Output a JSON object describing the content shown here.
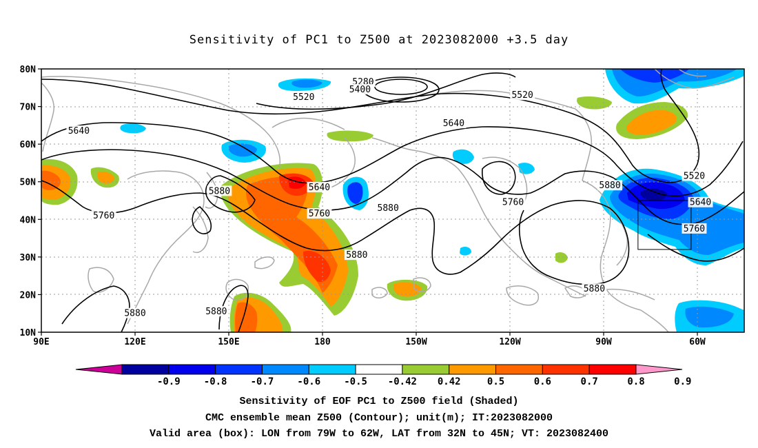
{
  "title": "Sensitivity of PC1 to Z500 at 2023082000 +3.5 day",
  "lat_labels": [
    "80N",
    "70N",
    "60N",
    "50N",
    "40N",
    "30N",
    "20N",
    "10N"
  ],
  "lon_labels": [
    "90E",
    "120E",
    "150E",
    "180",
    "150W",
    "120W",
    "90W",
    "60W"
  ],
  "contour_labels": [
    {
      "text": "5280",
      "lon": 193,
      "lat": 76.5
    },
    {
      "text": "5400",
      "lon": 192,
      "lat": 74.5
    },
    {
      "text": "5520",
      "lon": 174,
      "lat": 72.5
    },
    {
      "text": "5520",
      "lon": 244,
      "lat": 73
    },
    {
      "text": "5520",
      "lon": 299,
      "lat": 51.5
    },
    {
      "text": "5640",
      "lon": 102,
      "lat": 63.5
    },
    {
      "text": "5640",
      "lon": 222,
      "lat": 65.5
    },
    {
      "text": "5640",
      "lon": 179,
      "lat": 48.5
    },
    {
      "text": "5640",
      "lon": 301,
      "lat": 44.5
    },
    {
      "text": "5760",
      "lon": 110,
      "lat": 41
    },
    {
      "text": "5760",
      "lon": 179,
      "lat": 41.5
    },
    {
      "text": "5760",
      "lon": 241,
      "lat": 44.5
    },
    {
      "text": "5760",
      "lon": 299,
      "lat": 37.5
    },
    {
      "text": "5880",
      "lon": 147,
      "lat": 47.5
    },
    {
      "text": "5880",
      "lon": 201,
      "lat": 43
    },
    {
      "text": "5880",
      "lon": 191,
      "lat": 30.5
    },
    {
      "text": "5880",
      "lon": 272,
      "lat": 49
    },
    {
      "text": "5880",
      "lon": 267,
      "lat": 21.5
    },
    {
      "text": "5880",
      "lon": 120,
      "lat": 15
    },
    {
      "text": "5880",
      "lon": 146,
      "lat": 15.5
    }
  ],
  "valid_box": {
    "lon_west": 281,
    "lon_east": 298,
    "lat_south": 32,
    "lat_north": 45
  },
  "colorbar": {
    "colors": [
      "#cc0099",
      "#00009f",
      "#0000ee",
      "#0033ff",
      "#0088ff",
      "#00ccff",
      "#ffffff",
      "#99cc33",
      "#ff9900",
      "#ff6600",
      "#ff3300",
      "#ff0000",
      "#ff99cc"
    ],
    "tick_labels": [
      "-0.9",
      "-0.8",
      "-0.7",
      "-0.6",
      "-0.5",
      "-0.42",
      "0.42",
      "0.5",
      "0.6",
      "0.7",
      "0.8",
      "0.9"
    ]
  },
  "caption_line1": "Sensitivity of EOF PC1 to Z500 field (Shaded)",
  "caption_line2": "CMC ensemble mean Z500 (Contour); unit(m); IT:2023082000",
  "caption_line3": "Valid area (box): LON from 79W to 62W, LAT from 32N to 45N; VT: 2023082400"
}
